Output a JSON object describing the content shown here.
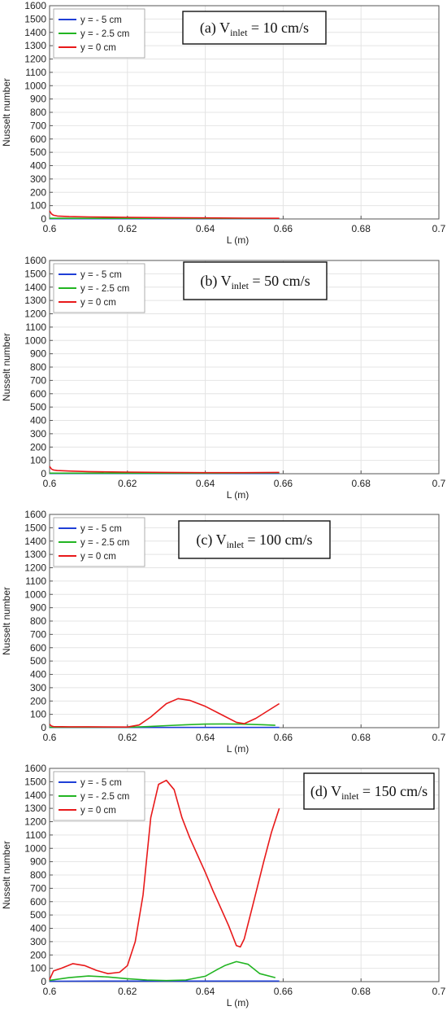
{
  "chart_data": [
    {
      "type": "line",
      "annotation": {
        "prefix": "(a) V",
        "sub": "inlet",
        "suffix": " = 10 cm/s"
      },
      "xlabel": "L (m)",
      "ylabel": "Nusselt number",
      "xlim": [
        0.6,
        0.7
      ],
      "ylim": [
        0,
        1600
      ],
      "xticks": [
        "0.6",
        "0.62",
        "0.64",
        "0.66",
        "0.68",
        "0.7"
      ],
      "yticks": [
        "0",
        "100",
        "200",
        "300",
        "400",
        "500",
        "600",
        "700",
        "800",
        "900",
        "1000",
        "1100",
        "1200",
        "1300",
        "1400",
        "1500",
        "1600"
      ],
      "grid": true,
      "legend": "top-left",
      "series": [
        {
          "name": "y = - 5 cm",
          "color": "#1f3fd6",
          "x": [
            0.6,
            0.62,
            0.64,
            0.659
          ],
          "y": [
            2,
            2,
            2,
            2
          ]
        },
        {
          "name": "y = - 2.5 cm",
          "color": "#22b522",
          "x": [
            0.6,
            0.62,
            0.64,
            0.659
          ],
          "y": [
            5,
            5,
            4,
            3
          ]
        },
        {
          "name": "y = 0 cm",
          "color": "#e8191a",
          "x": [
            0.6,
            0.6005,
            0.601,
            0.602,
            0.605,
            0.61,
            0.62,
            0.63,
            0.64,
            0.65,
            0.659
          ],
          "y": [
            60,
            38,
            28,
            22,
            18,
            15,
            12,
            10,
            8,
            6,
            5
          ]
        }
      ]
    },
    {
      "type": "line",
      "annotation": {
        "prefix": "(b) V",
        "sub": "inlet",
        "suffix": " = 50 cm/s"
      },
      "xlabel": "L (m)",
      "ylabel": "Nusselt number",
      "xlim": [
        0.6,
        0.7
      ],
      "ylim": [
        0,
        1600
      ],
      "xticks": [
        "0.6",
        "0.62",
        "0.64",
        "0.66",
        "0.68",
        "0.7"
      ],
      "yticks": [
        "0",
        "100",
        "200",
        "300",
        "400",
        "500",
        "600",
        "700",
        "800",
        "900",
        "1000",
        "1100",
        "1200",
        "1300",
        "1400",
        "1500",
        "1600"
      ],
      "grid": true,
      "legend": "top-left",
      "series": [
        {
          "name": "y = - 5 cm",
          "color": "#1f3fd6",
          "x": [
            0.6,
            0.62,
            0.64,
            0.659
          ],
          "y": [
            2,
            2,
            2,
            2
          ]
        },
        {
          "name": "y = - 2.5 cm",
          "color": "#22b522",
          "x": [
            0.6,
            0.62,
            0.64,
            0.659
          ],
          "y": [
            4,
            4,
            4,
            6
          ]
        },
        {
          "name": "y = 0 cm",
          "color": "#e8191a",
          "x": [
            0.6,
            0.6005,
            0.601,
            0.602,
            0.605,
            0.61,
            0.62,
            0.63,
            0.64,
            0.65,
            0.659
          ],
          "y": [
            55,
            35,
            28,
            24,
            20,
            16,
            12,
            10,
            8,
            8,
            10
          ]
        }
      ]
    },
    {
      "type": "line",
      "annotation": {
        "prefix": "(c) V",
        "sub": "inlet",
        "suffix": " = 100 cm/s"
      },
      "xlabel": "L (m)",
      "ylabel": "Nusselt number",
      "xlim": [
        0.6,
        0.7
      ],
      "ylim": [
        0,
        1600
      ],
      "xticks": [
        "0.6",
        "0.62",
        "0.64",
        "0.66",
        "0.68",
        "0.7"
      ],
      "yticks": [
        "0",
        "100",
        "200",
        "300",
        "400",
        "500",
        "600",
        "700",
        "800",
        "900",
        "1000",
        "1100",
        "1200",
        "1300",
        "1400",
        "1500",
        "1600"
      ],
      "grid": true,
      "legend": "top-left",
      "series": [
        {
          "name": "y = - 5 cm",
          "color": "#1f3fd6",
          "x": [
            0.6,
            0.62,
            0.64,
            0.659
          ],
          "y": [
            2,
            2,
            2,
            2
          ]
        },
        {
          "name": "y = - 2.5 cm",
          "color": "#22b522",
          "x": [
            0.6,
            0.62,
            0.625,
            0.63,
            0.635,
            0.64,
            0.645,
            0.65,
            0.655,
            0.658
          ],
          "y": [
            3,
            3,
            8,
            15,
            22,
            27,
            28,
            26,
            22,
            18
          ]
        },
        {
          "name": "y = 0 cm",
          "color": "#e8191a",
          "x": [
            0.6,
            0.6005,
            0.601,
            0.605,
            0.61,
            0.62,
            0.623,
            0.626,
            0.63,
            0.633,
            0.636,
            0.64,
            0.644,
            0.648,
            0.65,
            0.653,
            0.656,
            0.659
          ],
          "y": [
            25,
            12,
            8,
            7,
            7,
            5,
            20,
            80,
            180,
            218,
            205,
            160,
            100,
            40,
            30,
            70,
            125,
            180
          ]
        }
      ]
    },
    {
      "type": "line",
      "annotation": {
        "prefix": "(d) V",
        "sub": "inlet",
        "suffix": " = 150 cm/s"
      },
      "xlabel": "L (m)",
      "ylabel": "Nusselt number",
      "xlim": [
        0.6,
        0.7
      ],
      "ylim": [
        0,
        1600
      ],
      "xticks": [
        "0.6",
        "0.62",
        "0.64",
        "0.66",
        "0.68",
        "0.7"
      ],
      "yticks": [
        "0",
        "100",
        "200",
        "300",
        "400",
        "500",
        "600",
        "700",
        "800",
        "900",
        "1000",
        "1100",
        "1200",
        "1300",
        "1400",
        "1500",
        "1600"
      ],
      "grid": true,
      "legend": "top-left",
      "series": [
        {
          "name": "y = - 5 cm",
          "color": "#1f3fd6",
          "x": [
            0.6,
            0.62,
            0.64,
            0.659
          ],
          "y": [
            3,
            4,
            4,
            4
          ]
        },
        {
          "name": "y = - 2.5 cm",
          "color": "#22b522",
          "x": [
            0.6,
            0.605,
            0.61,
            0.615,
            0.62,
            0.625,
            0.63,
            0.635,
            0.64,
            0.643,
            0.645,
            0.648,
            0.651,
            0.654,
            0.658
          ],
          "y": [
            10,
            30,
            42,
            35,
            22,
            12,
            8,
            12,
            40,
            90,
            120,
            150,
            130,
            60,
            30
          ]
        },
        {
          "name": "y = 0 cm",
          "color": "#e8191a",
          "x": [
            0.6,
            0.601,
            0.603,
            0.606,
            0.609,
            0.612,
            0.615,
            0.618,
            0.62,
            0.622,
            0.624,
            0.626,
            0.628,
            0.63,
            0.632,
            0.634,
            0.636,
            0.638,
            0.64,
            0.642,
            0.644,
            0.646,
            0.648,
            0.649,
            0.65,
            0.652,
            0.655,
            0.657,
            0.659
          ],
          "y": [
            15,
            80,
            100,
            135,
            120,
            85,
            60,
            70,
            120,
            300,
            650,
            1230,
            1480,
            1510,
            1440,
            1230,
            1080,
            950,
            820,
            680,
            550,
            420,
            270,
            260,
            320,
            550,
            900,
            1120,
            1300
          ]
        }
      ]
    }
  ]
}
